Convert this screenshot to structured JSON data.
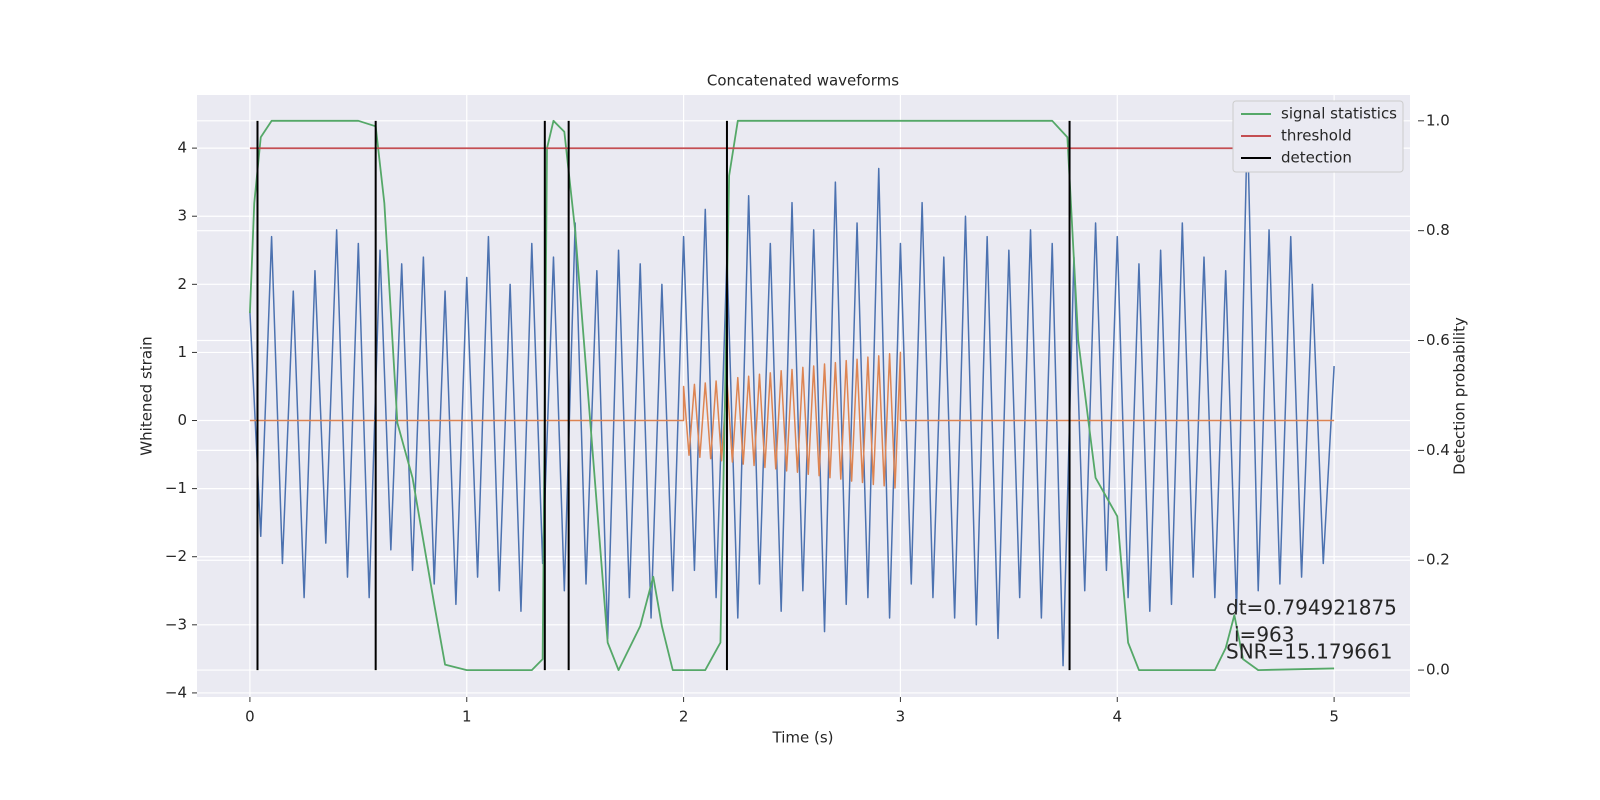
{
  "chart_data": {
    "type": "line",
    "title": "Concatenated waveforms",
    "xlabel": "Time (s)",
    "ylabel": "Whitened strain",
    "y2label": "Detection probability",
    "xlim": [
      -0.244,
      5.35
    ],
    "ylim": [
      -4.06,
      4.78
    ],
    "y2lim": [
      -0.049,
      1.047
    ],
    "xticks": [
      0,
      1,
      2,
      3,
      4,
      5
    ],
    "yticks": [
      {
        "value": -4,
        "label": "−4"
      },
      {
        "value": -3,
        "label": "−3"
      },
      {
        "value": -2,
        "label": "−2"
      },
      {
        "value": -1,
        "label": "−1"
      },
      0,
      1,
      2,
      3,
      4
    ],
    "y2ticks": [
      {
        "value": 0,
        "label": "0.0"
      },
      0.2,
      0.4,
      0.6,
      0.8,
      {
        "value": 1,
        "label": "1.0"
      }
    ],
    "grid": true,
    "legend": "upper right",
    "annotations": [
      "dt=0.794921875",
      "i=963",
      "SNR=15.179661"
    ],
    "series": [
      {
        "color": "#4c72b0",
        "axis": "y",
        "x": [
          0,
          0.05,
          0.1,
          0.15,
          0.2,
          0.25,
          0.3,
          0.35,
          0.4,
          0.45,
          0.5,
          0.55,
          0.6,
          0.65,
          0.7,
          0.75,
          0.8,
          0.85,
          0.9,
          0.95,
          1,
          1.05,
          1.1,
          1.15,
          1.2,
          1.25,
          1.3,
          1.35,
          1.4,
          1.45,
          1.5,
          1.55,
          1.6,
          1.65,
          1.7,
          1.75,
          1.8,
          1.85,
          1.9,
          1.95,
          2,
          2.05,
          2.1,
          2.15,
          2.2,
          2.25,
          2.3,
          2.35,
          2.4,
          2.45,
          2.5,
          2.55,
          2.6,
          2.65,
          2.7,
          2.75,
          2.8,
          2.85,
          2.9,
          2.95,
          3,
          3.05,
          3.1,
          3.15,
          3.2,
          3.25,
          3.3,
          3.35,
          3.4,
          3.45,
          3.5,
          3.55,
          3.6,
          3.65,
          3.7,
          3.75,
          3.8,
          3.85,
          3.9,
          3.95,
          4,
          4.05,
          4.1,
          4.15,
          4.2,
          4.25,
          4.3,
          4.35,
          4.4,
          4.45,
          4.5,
          4.55,
          4.6,
          4.65,
          4.7,
          4.75,
          4.8,
          4.85,
          4.9,
          4.95,
          5
        ],
        "values": [
          1.6,
          -1.7,
          2.7,
          -2.1,
          1.9,
          -2.6,
          2.2,
          -1.8,
          2.8,
          -2.3,
          2.6,
          -2.6,
          2.5,
          -1.9,
          2.3,
          -2.2,
          2.4,
          -2.4,
          1.9,
          -2.7,
          2.1,
          -2.3,
          2.7,
          -2.5,
          2.0,
          -2.8,
          2.6,
          -2.1,
          2.4,
          -2.5,
          2.9,
          -2.4,
          2.2,
          -3.2,
          2.5,
          -2.6,
          2.3,
          -2.9,
          2.0,
          -2.5,
          2.7,
          -2.2,
          3.1,
          -2.6,
          2.4,
          -2.9,
          3.3,
          -2.4,
          2.6,
          -2.8,
          3.2,
          -2.5,
          2.8,
          -3.1,
          3.5,
          -2.7,
          2.9,
          -2.6,
          3.7,
          -2.9,
          2.6,
          -2.4,
          3.2,
          -2.6,
          2.4,
          -2.9,
          3.0,
          -3.0,
          2.7,
          -3.2,
          2.5,
          -2.6,
          2.8,
          -2.9,
          2.6,
          -3.6,
          2.4,
          -2.5,
          2.9,
          -2.2,
          2.7,
          -2.6,
          2.3,
          -2.8,
          2.5,
          -2.7,
          2.9,
          -2.3,
          2.4,
          -2.6,
          2.2,
          -2.8,
          4.4,
          -2.5,
          2.8,
          -2.4,
          2.7,
          -2.3,
          2.0,
          -2.1,
          0.8
        ]
      },
      {
        "color": "#dd8452",
        "axis": "y",
        "x": [
          0,
          2,
          2,
          2.025,
          2.05,
          2.075,
          2.1,
          2.125,
          2.15,
          2.175,
          2.2,
          2.225,
          2.25,
          2.275,
          2.3,
          2.325,
          2.35,
          2.375,
          2.4,
          2.425,
          2.45,
          2.475,
          2.5,
          2.525,
          2.55,
          2.575,
          2.6,
          2.625,
          2.65,
          2.675,
          2.7,
          2.725,
          2.75,
          2.775,
          2.8,
          2.825,
          2.85,
          2.875,
          2.9,
          2.925,
          2.95,
          2.975,
          3,
          3,
          5
        ],
        "values": [
          0,
          0,
          0.5,
          -0.51,
          0.53,
          -0.54,
          0.55,
          -0.56,
          0.58,
          -0.59,
          0.6,
          -0.61,
          0.63,
          -0.64,
          0.65,
          -0.66,
          0.68,
          -0.69,
          0.7,
          -0.71,
          0.73,
          -0.74,
          0.75,
          -0.76,
          0.78,
          -0.79,
          0.8,
          -0.81,
          0.83,
          -0.84,
          0.85,
          -0.86,
          0.88,
          -0.89,
          0.9,
          -0.91,
          0.93,
          -0.94,
          0.95,
          -0.96,
          0.98,
          -0.99,
          1.0,
          0,
          0
        ]
      },
      {
        "name": "signal statistics",
        "color": "#55a868",
        "axis": "y2",
        "x": [
          0,
          0.02,
          0.05,
          0.1,
          0.5,
          0.58,
          0.62,
          0.68,
          0.75,
          0.85,
          0.9,
          1.0,
          1.3,
          1.35,
          1.37,
          1.4,
          1.45,
          1.5,
          1.58,
          1.65,
          1.7,
          1.8,
          1.86,
          1.9,
          1.95,
          2.1,
          2.17,
          2.21,
          2.25,
          2.4,
          3.7,
          3.77,
          3.82,
          3.9,
          4.0,
          4.05,
          4.1,
          4.45,
          4.5,
          4.54,
          4.58,
          4.65,
          5.0
        ],
        "values": [
          0.65,
          0.85,
          0.97,
          1.0,
          1.0,
          0.99,
          0.85,
          0.45,
          0.35,
          0.12,
          0.01,
          0.0,
          0.0,
          0.02,
          0.95,
          1.0,
          0.98,
          0.8,
          0.4,
          0.05,
          0.0,
          0.08,
          0.17,
          0.08,
          0.0,
          0.0,
          0.05,
          0.9,
          1.0,
          1.0,
          1.0,
          0.97,
          0.6,
          0.35,
          0.28,
          0.05,
          0.0,
          0.0,
          0.04,
          0.1,
          0.02,
          0.0,
          0.003
        ]
      },
      {
        "name": "threshold",
        "color": "#c44e52",
        "axis": "y2",
        "x": [
          0,
          5
        ],
        "values": [
          0.95,
          0.95
        ]
      },
      {
        "name": "detection",
        "color": "#000000",
        "axis": "y2",
        "kind": "vlines",
        "x": [
          0.035,
          0.58,
          1.36,
          1.47,
          2.2,
          3.78
        ],
        "ymin": 0,
        "ymax": 1
      }
    ]
  }
}
